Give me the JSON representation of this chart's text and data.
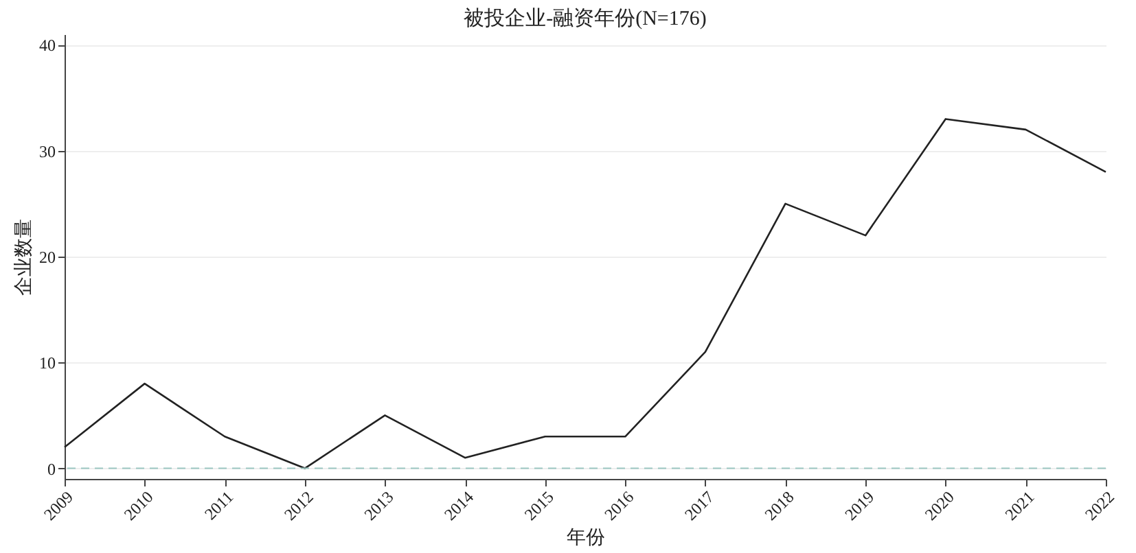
{
  "chart_data": {
    "type": "line",
    "title": "被投企业-融资年份(N=176)",
    "xlabel": "年份",
    "ylabel": "企业数量",
    "x": [
      2009,
      2010,
      2011,
      2012,
      2013,
      2014,
      2015,
      2016,
      2017,
      2018,
      2019,
      2020,
      2021,
      2022
    ],
    "series": [
      {
        "color": "#222222",
        "values": [
          2,
          8,
          3,
          0,
          5,
          1,
          3,
          3,
          11,
          25,
          22,
          33,
          32,
          28
        ]
      }
    ],
    "xlim": [
      2009,
      2022
    ],
    "xticks": [
      2009,
      2010,
      2011,
      2012,
      2013,
      2014,
      2015,
      2016,
      2017,
      2018,
      2019,
      2020,
      2021,
      2022
    ],
    "ylim": [
      -1,
      41
    ],
    "yticks": [
      0,
      10,
      20,
      30,
      40
    ],
    "grid": "y",
    "line_style": "solid",
    "ref_lines": [
      {
        "axis": "y",
        "value": 0,
        "color": "#9cc7c2",
        "line_style": "dashed"
      }
    ]
  }
}
